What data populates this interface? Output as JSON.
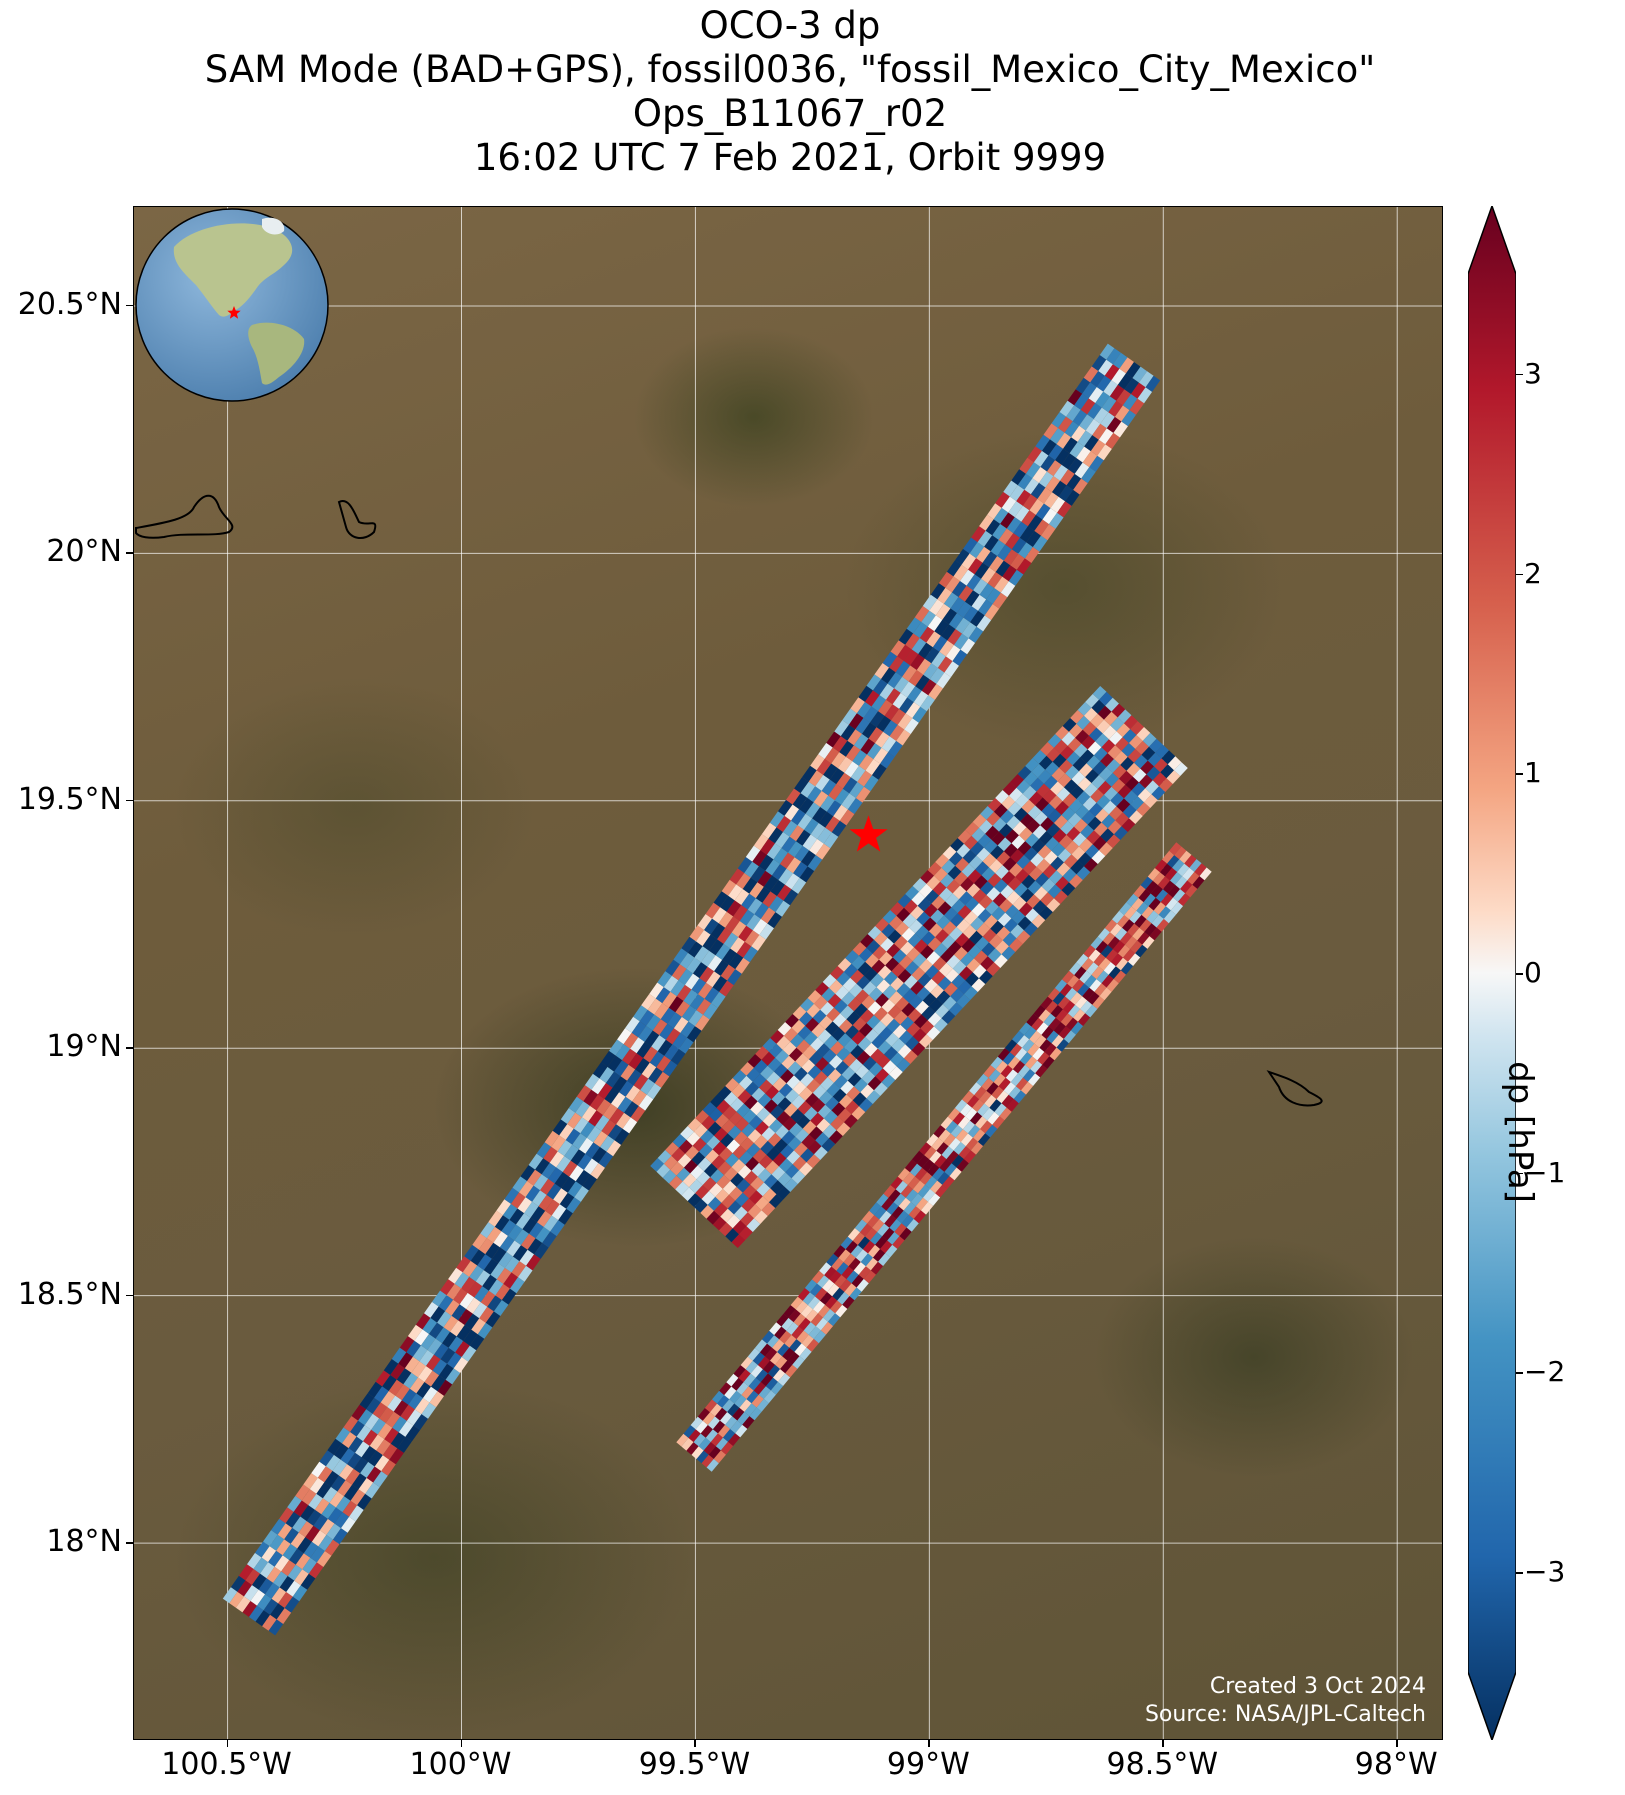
{
  "title": {
    "line1": "OCO-3 dp",
    "line2": "SAM Mode (BAD+GPS), fossil0036, \"fossil_Mexico_City_Mexico\"",
    "line3": "Ops_B11067_r02",
    "line4": "16:02 UTC 7 Feb 2021, Orbit 9999"
  },
  "map": {
    "lat_ticks": [
      "20.5°N",
      "20°N",
      "19.5°N",
      "19°N",
      "18.5°N",
      "18°N"
    ],
    "lon_ticks": [
      "100.5°W",
      "100°W",
      "99.5°W",
      "99°W",
      "98.5°W",
      "98°W"
    ],
    "extent": {
      "lon": [
        -100.7,
        -97.9
      ],
      "lat": [
        17.6,
        20.7
      ]
    },
    "target": {
      "lon": -99.13,
      "lat": 19.43,
      "marker": "star",
      "color": "#ff0000"
    }
  },
  "colorbar": {
    "label": "dp [hPa]",
    "ticks": [
      "3",
      "2",
      "1",
      "0",
      "−1",
      "−2",
      "−3"
    ],
    "range": [
      -3.5,
      3.5
    ],
    "colormap": "RdBu_r",
    "extend": "both"
  },
  "credit": {
    "created": "Created 3 Oct 2024",
    "source": "Source: NASA/JPL-Caltech"
  },
  "inset_globe": {
    "marker_color": "#ff0000",
    "ocean": "#6f9fc9",
    "land": "#b9c48f"
  }
}
